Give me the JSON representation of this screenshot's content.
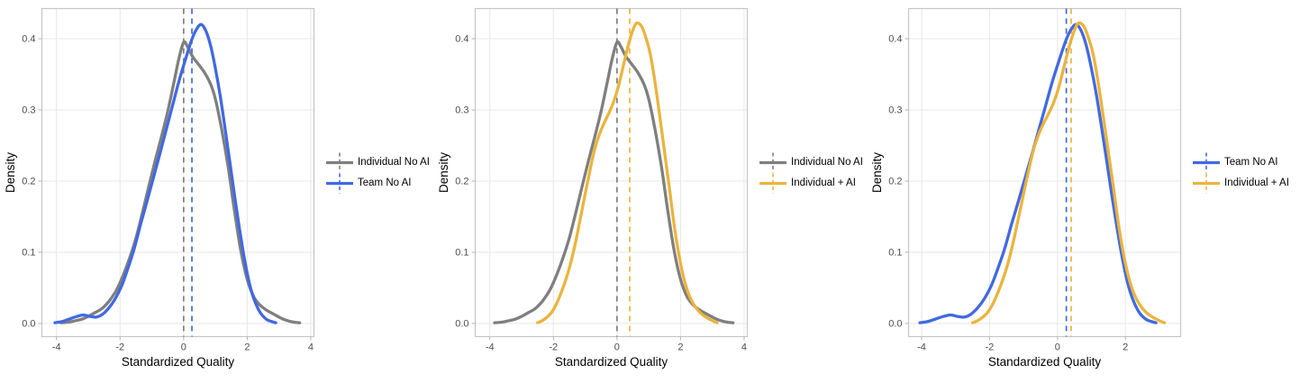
{
  "figure": {
    "background": "#ffffff",
    "grid_color": "#e9e9e9",
    "panel_border_color": "#c6c6c6",
    "tick_mark_color": "#b3b3b3",
    "tick_label_color": "#4d4d4d",
    "axis_title_color": "#000000"
  },
  "axes": {
    "xlabel": "Standardized Quality",
    "ylabel": "Density"
  },
  "chart_data": [
    {
      "type": "line",
      "subtype": "density",
      "title": "",
      "xlabel": "Standardized Quality",
      "ylabel": "Density",
      "x_domain": [
        -4.46,
        4.1
      ],
      "y_domain": [
        -0.0184,
        0.4424
      ],
      "x_ticks": [
        -4,
        -2,
        0,
        2,
        4
      ],
      "x_tick_labels": [
        "-4",
        "-2",
        "0",
        "2",
        "4"
      ],
      "y_ticks": [
        0,
        0.1,
        0.2,
        0.3,
        0.4
      ],
      "y_tick_labels": [
        "0.0",
        "0.1",
        "0.2",
        "0.3",
        "0.4"
      ],
      "grid": true,
      "legend_position": "right",
      "series": [
        {
          "name": "Individual No AI",
          "key": "individual-no-ai",
          "color": "#7f7f7f",
          "mean_line": 0.0,
          "points": [
            [
              -3.85,
              0.001
            ],
            [
              -3.6,
              0.002
            ],
            [
              -3.4,
              0.004
            ],
            [
              -3.2,
              0.006
            ],
            [
              -3.0,
              0.01
            ],
            [
              -2.8,
              0.015
            ],
            [
              -2.6,
              0.02
            ],
            [
              -2.45,
              0.026
            ],
            [
              -2.3,
              0.034
            ],
            [
              -2.1,
              0.048
            ],
            [
              -1.9,
              0.068
            ],
            [
              -1.7,
              0.092
            ],
            [
              -1.5,
              0.12
            ],
            [
              -1.3,
              0.155
            ],
            [
              -1.1,
              0.192
            ],
            [
              -0.9,
              0.228
            ],
            [
              -0.7,
              0.262
            ],
            [
              -0.5,
              0.298
            ],
            [
              -0.3,
              0.34
            ],
            [
              -0.15,
              0.372
            ],
            [
              0.0,
              0.395
            ],
            [
              0.12,
              0.389
            ],
            [
              0.28,
              0.375
            ],
            [
              0.45,
              0.365
            ],
            [
              0.65,
              0.353
            ],
            [
              0.85,
              0.336
            ],
            [
              1.0,
              0.315
            ],
            [
              1.2,
              0.272
            ],
            [
              1.4,
              0.22
            ],
            [
              1.6,
              0.158
            ],
            [
              1.8,
              0.102
            ],
            [
              2.0,
              0.062
            ],
            [
              2.2,
              0.038
            ],
            [
              2.4,
              0.026
            ],
            [
              2.6,
              0.019
            ],
            [
              2.8,
              0.014
            ],
            [
              3.0,
              0.009
            ],
            [
              3.2,
              0.005
            ],
            [
              3.45,
              0.002
            ],
            [
              3.65,
              0.001
            ]
          ]
        },
        {
          "name": "Team No AI",
          "key": "team-no-ai",
          "color": "#4169e1",
          "mean_line": 0.26,
          "points": [
            [
              -4.05,
              0.001
            ],
            [
              -3.8,
              0.003
            ],
            [
              -3.55,
              0.007
            ],
            [
              -3.35,
              0.01
            ],
            [
              -3.15,
              0.012
            ],
            [
              -2.95,
              0.01
            ],
            [
              -2.75,
              0.009
            ],
            [
              -2.55,
              0.013
            ],
            [
              -2.35,
              0.022
            ],
            [
              -2.15,
              0.035
            ],
            [
              -1.95,
              0.053
            ],
            [
              -1.75,
              0.078
            ],
            [
              -1.55,
              0.106
            ],
            [
              -1.35,
              0.14
            ],
            [
              -1.15,
              0.172
            ],
            [
              -0.95,
              0.205
            ],
            [
              -0.75,
              0.238
            ],
            [
              -0.55,
              0.272
            ],
            [
              -0.35,
              0.306
            ],
            [
              -0.15,
              0.34
            ],
            [
              0.05,
              0.37
            ],
            [
              0.25,
              0.398
            ],
            [
              0.4,
              0.413
            ],
            [
              0.55,
              0.42
            ],
            [
              0.7,
              0.411
            ],
            [
              0.85,
              0.39
            ],
            [
              1.0,
              0.358
            ],
            [
              1.15,
              0.32
            ],
            [
              1.3,
              0.275
            ],
            [
              1.45,
              0.228
            ],
            [
              1.6,
              0.18
            ],
            [
              1.75,
              0.135
            ],
            [
              1.9,
              0.094
            ],
            [
              2.05,
              0.06
            ],
            [
              2.2,
              0.036
            ],
            [
              2.4,
              0.016
            ],
            [
              2.6,
              0.006
            ],
            [
              2.75,
              0.003
            ],
            [
              2.9,
              0.001
            ]
          ]
        }
      ]
    },
    {
      "type": "line",
      "subtype": "density",
      "title": "",
      "xlabel": "Standardized Quality",
      "ylabel": "Density",
      "x_domain": [
        -4.46,
        4.1
      ],
      "y_domain": [
        -0.0184,
        0.4424
      ],
      "x_ticks": [
        -4,
        -2,
        0,
        2,
        4
      ],
      "x_tick_labels": [
        "-4",
        "-2",
        "0",
        "2",
        "4"
      ],
      "y_ticks": [
        0,
        0.1,
        0.2,
        0.3,
        0.4
      ],
      "y_tick_labels": [
        "0.0",
        "0.1",
        "0.2",
        "0.3",
        "0.4"
      ],
      "grid": true,
      "legend_position": "right",
      "series": [
        {
          "name": "Individual No AI",
          "key": "individual-no-ai",
          "color": "#7f7f7f",
          "mean_line": 0.0,
          "points": [
            [
              -3.85,
              0.001
            ],
            [
              -3.6,
              0.002
            ],
            [
              -3.4,
              0.004
            ],
            [
              -3.2,
              0.006
            ],
            [
              -3.0,
              0.01
            ],
            [
              -2.8,
              0.015
            ],
            [
              -2.6,
              0.02
            ],
            [
              -2.45,
              0.026
            ],
            [
              -2.3,
              0.034
            ],
            [
              -2.1,
              0.048
            ],
            [
              -1.9,
              0.068
            ],
            [
              -1.7,
              0.092
            ],
            [
              -1.5,
              0.12
            ],
            [
              -1.3,
              0.155
            ],
            [
              -1.1,
              0.192
            ],
            [
              -0.9,
              0.228
            ],
            [
              -0.7,
              0.262
            ],
            [
              -0.5,
              0.298
            ],
            [
              -0.3,
              0.34
            ],
            [
              -0.15,
              0.372
            ],
            [
              0.0,
              0.395
            ],
            [
              0.12,
              0.389
            ],
            [
              0.28,
              0.375
            ],
            [
              0.45,
              0.365
            ],
            [
              0.65,
              0.353
            ],
            [
              0.85,
              0.336
            ],
            [
              1.0,
              0.315
            ],
            [
              1.2,
              0.272
            ],
            [
              1.4,
              0.22
            ],
            [
              1.6,
              0.158
            ],
            [
              1.8,
              0.102
            ],
            [
              2.0,
              0.062
            ],
            [
              2.2,
              0.038
            ],
            [
              2.4,
              0.026
            ],
            [
              2.6,
              0.019
            ],
            [
              2.8,
              0.014
            ],
            [
              3.0,
              0.009
            ],
            [
              3.2,
              0.005
            ],
            [
              3.45,
              0.002
            ],
            [
              3.65,
              0.001
            ]
          ]
        },
        {
          "name": "Individual + AI",
          "key": "individual-plus-ai",
          "color": "#eab43d",
          "mean_line": 0.4,
          "points": [
            [
              -2.5,
              0.001
            ],
            [
              -2.35,
              0.004
            ],
            [
              -2.2,
              0.009
            ],
            [
              -2.05,
              0.016
            ],
            [
              -1.9,
              0.028
            ],
            [
              -1.75,
              0.044
            ],
            [
              -1.6,
              0.063
            ],
            [
              -1.45,
              0.086
            ],
            [
              -1.3,
              0.115
            ],
            [
              -1.15,
              0.148
            ],
            [
              -1.0,
              0.182
            ],
            [
              -0.85,
              0.215
            ],
            [
              -0.7,
              0.245
            ],
            [
              -0.55,
              0.266
            ],
            [
              -0.4,
              0.282
            ],
            [
              -0.25,
              0.296
            ],
            [
              -0.1,
              0.312
            ],
            [
              0.05,
              0.334
            ],
            [
              0.2,
              0.362
            ],
            [
              0.35,
              0.39
            ],
            [
              0.5,
              0.412
            ],
            [
              0.62,
              0.422
            ],
            [
              0.78,
              0.417
            ],
            [
              0.92,
              0.4
            ],
            [
              1.05,
              0.378
            ],
            [
              1.2,
              0.338
            ],
            [
              1.35,
              0.29
            ],
            [
              1.5,
              0.24
            ],
            [
              1.65,
              0.19
            ],
            [
              1.8,
              0.138
            ],
            [
              1.95,
              0.096
            ],
            [
              2.1,
              0.064
            ],
            [
              2.25,
              0.042
            ],
            [
              2.4,
              0.028
            ],
            [
              2.6,
              0.016
            ],
            [
              2.8,
              0.009
            ],
            [
              3.0,
              0.004
            ],
            [
              3.15,
              0.001
            ]
          ]
        }
      ]
    },
    {
      "type": "line",
      "subtype": "density",
      "title": "",
      "xlabel": "Standardized Quality",
      "ylabel": "Density",
      "x_domain": [
        -4.385,
        3.625
      ],
      "y_domain": [
        -0.0184,
        0.4424
      ],
      "x_ticks": [
        -4,
        -2,
        0,
        2
      ],
      "x_tick_labels": [
        "-4",
        "-2",
        "0",
        "2"
      ],
      "y_ticks": [
        0,
        0.1,
        0.2,
        0.3,
        0.4
      ],
      "y_tick_labels": [
        "0.0",
        "0.1",
        "0.2",
        "0.3",
        "0.4"
      ],
      "grid": true,
      "legend_position": "right",
      "series": [
        {
          "name": "Team No AI",
          "key": "team-no-ai",
          "color": "#4169e1",
          "mean_line": 0.26,
          "points": [
            [
              -4.05,
              0.001
            ],
            [
              -3.8,
              0.003
            ],
            [
              -3.55,
              0.007
            ],
            [
              -3.35,
              0.01
            ],
            [
              -3.15,
              0.012
            ],
            [
              -2.95,
              0.01
            ],
            [
              -2.75,
              0.009
            ],
            [
              -2.55,
              0.013
            ],
            [
              -2.35,
              0.022
            ],
            [
              -2.15,
              0.035
            ],
            [
              -1.95,
              0.053
            ],
            [
              -1.75,
              0.078
            ],
            [
              -1.55,
              0.106
            ],
            [
              -1.35,
              0.14
            ],
            [
              -1.15,
              0.172
            ],
            [
              -0.95,
              0.205
            ],
            [
              -0.75,
              0.238
            ],
            [
              -0.55,
              0.272
            ],
            [
              -0.35,
              0.306
            ],
            [
              -0.15,
              0.34
            ],
            [
              0.05,
              0.37
            ],
            [
              0.25,
              0.398
            ],
            [
              0.4,
              0.413
            ],
            [
              0.55,
              0.42
            ],
            [
              0.7,
              0.411
            ],
            [
              0.85,
              0.39
            ],
            [
              1.0,
              0.358
            ],
            [
              1.15,
              0.32
            ],
            [
              1.3,
              0.275
            ],
            [
              1.45,
              0.228
            ],
            [
              1.6,
              0.18
            ],
            [
              1.75,
              0.135
            ],
            [
              1.9,
              0.094
            ],
            [
              2.05,
              0.06
            ],
            [
              2.2,
              0.036
            ],
            [
              2.4,
              0.016
            ],
            [
              2.6,
              0.006
            ],
            [
              2.75,
              0.003
            ],
            [
              2.9,
              0.001
            ]
          ]
        },
        {
          "name": "Individual + AI",
          "key": "individual-plus-ai",
          "color": "#eab43d",
          "mean_line": 0.4,
          "points": [
            [
              -2.5,
              0.001
            ],
            [
              -2.35,
              0.004
            ],
            [
              -2.2,
              0.009
            ],
            [
              -2.05,
              0.016
            ],
            [
              -1.9,
              0.028
            ],
            [
              -1.75,
              0.044
            ],
            [
              -1.6,
              0.063
            ],
            [
              -1.45,
              0.086
            ],
            [
              -1.3,
              0.115
            ],
            [
              -1.15,
              0.148
            ],
            [
              -1.0,
              0.182
            ],
            [
              -0.85,
              0.215
            ],
            [
              -0.7,
              0.245
            ],
            [
              -0.55,
              0.266
            ],
            [
              -0.4,
              0.282
            ],
            [
              -0.25,
              0.296
            ],
            [
              -0.1,
              0.312
            ],
            [
              0.05,
              0.334
            ],
            [
              0.2,
              0.362
            ],
            [
              0.35,
              0.39
            ],
            [
              0.5,
              0.412
            ],
            [
              0.62,
              0.422
            ],
            [
              0.78,
              0.417
            ],
            [
              0.92,
              0.4
            ],
            [
              1.05,
              0.378
            ],
            [
              1.2,
              0.338
            ],
            [
              1.35,
              0.29
            ],
            [
              1.5,
              0.24
            ],
            [
              1.65,
              0.19
            ],
            [
              1.8,
              0.138
            ],
            [
              1.95,
              0.096
            ],
            [
              2.1,
              0.064
            ],
            [
              2.25,
              0.042
            ],
            [
              2.4,
              0.028
            ],
            [
              2.6,
              0.016
            ],
            [
              2.8,
              0.009
            ],
            [
              3.0,
              0.004
            ],
            [
              3.15,
              0.001
            ]
          ]
        }
      ]
    }
  ]
}
